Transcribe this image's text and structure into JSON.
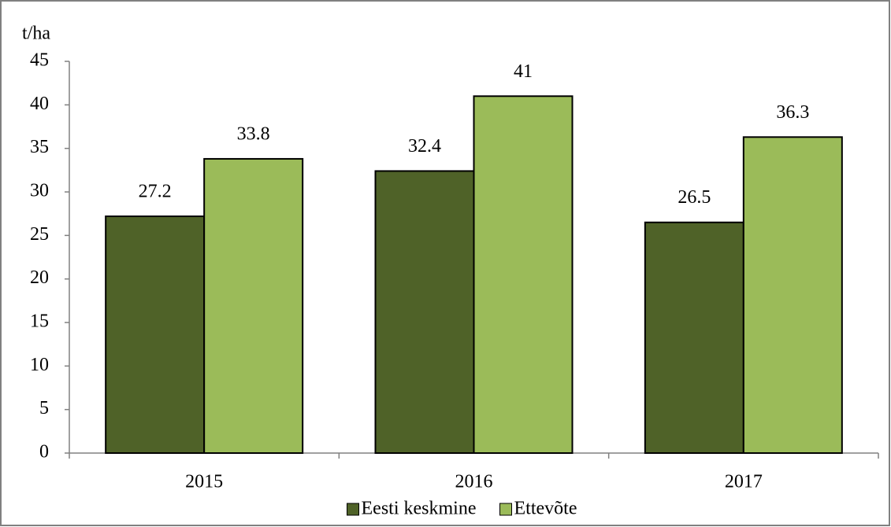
{
  "chart_data": {
    "type": "bar",
    "ylabel": "t/ha",
    "categories": [
      "2015",
      "2016",
      "2017"
    ],
    "series": [
      {
        "name": "Eesti keskmine",
        "color": "#4f6228",
        "values": [
          27.2,
          32.4,
          26.5
        ]
      },
      {
        "name": "Ettevõte",
        "color": "#9bbb59",
        "values": [
          33.8,
          41,
          36.3
        ]
      }
    ],
    "ylim": [
      0,
      45
    ],
    "yticks": [
      0,
      5,
      10,
      15,
      20,
      25,
      30,
      35,
      40,
      45
    ],
    "legend": "bottom"
  }
}
